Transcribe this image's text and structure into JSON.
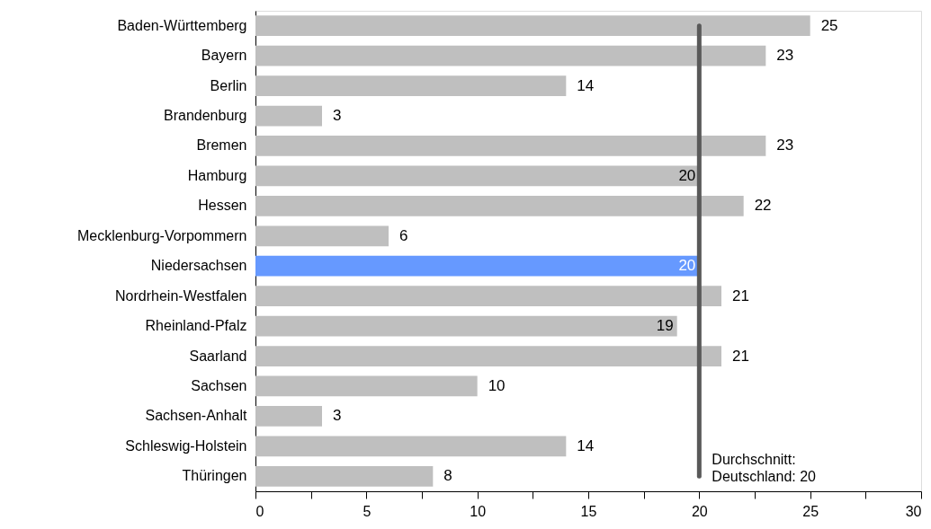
{
  "chart_data": {
    "type": "bar",
    "orientation": "horizontal",
    "categories": [
      "Baden-Württemberg",
      "Bayern",
      "Berlin",
      "Brandenburg",
      "Bremen",
      "Hamburg",
      "Hessen",
      "Mecklenburg-Vorpommern",
      "Niedersachsen",
      "Nordrhein-Westfalen",
      "Rheinland-Pfalz",
      "Saarland",
      "Sachsen",
      "Sachsen-Anhalt",
      "Schleswig-Holstein",
      "Thüringen"
    ],
    "values": [
      25,
      23,
      14,
      3,
      23,
      20,
      22,
      6,
      20,
      21,
      19,
      21,
      10,
      3,
      14,
      8
    ],
    "colors": [
      "#bfbfbf",
      "#bfbfbf",
      "#bfbfbf",
      "#bfbfbf",
      "#bfbfbf",
      "#bfbfbf",
      "#bfbfbf",
      "#bfbfbf",
      "#6699ff",
      "#bfbfbf",
      "#bfbfbf",
      "#bfbfbf",
      "#bfbfbf",
      "#bfbfbf",
      "#bfbfbf",
      "#bfbfbf"
    ],
    "data_labels": true,
    "xlim": [
      0,
      30
    ],
    "xticks": [
      0,
      {
        "value": 2.5,
        "label": null
      },
      5,
      {
        "value": 7.5,
        "label": null
      },
      10,
      {
        "value": 12.5,
        "label": null
      },
      15,
      {
        "value": 17.5,
        "label": null
      },
      20,
      {
        "value": 22.5,
        "label": null
      },
      25,
      {
        "value": 27.5,
        "label": null
      },
      30
    ],
    "ref_lines": [
      {
        "axis": "x",
        "value": 20,
        "label": "Durchschnitt:\nDeutschland: 20",
        "color": "#595959"
      }
    ],
    "grid": false
  }
}
